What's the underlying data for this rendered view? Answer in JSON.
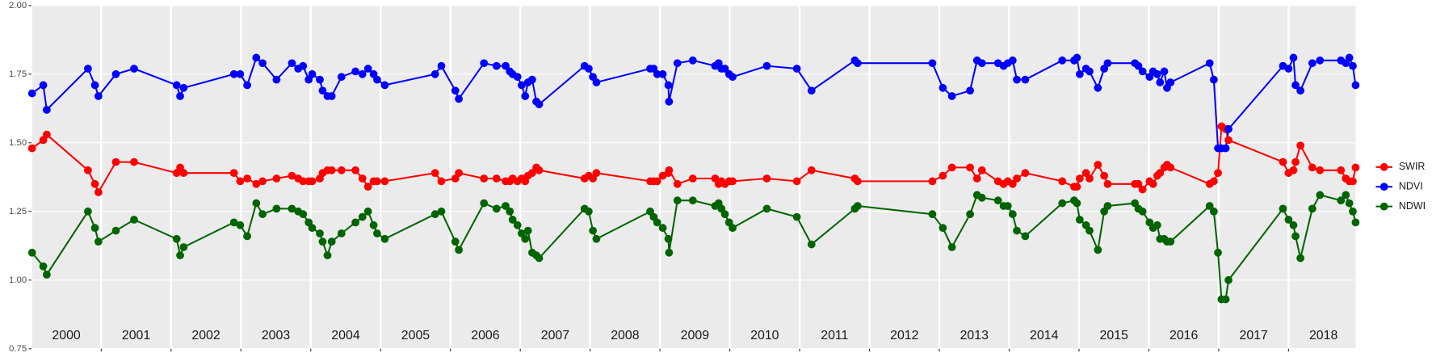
{
  "chart_data": {
    "type": "line",
    "x": [
      2000.01,
      2000.17,
      2000.22,
      2000.81,
      2000.91,
      2000.96,
      2001.21,
      2001.47,
      2002.08,
      2002.13,
      2002.18,
      2002.9,
      2002.99,
      2003.09,
      2003.22,
      2003.31,
      2003.51,
      2003.73,
      2003.82,
      2003.89,
      2003.97,
      2004.02,
      2004.13,
      2004.17,
      2004.24,
      2004.3,
      2004.44,
      2004.64,
      2004.74,
      2004.82,
      2004.9,
      2004.95,
      2005.06,
      2005.78,
      2005.87,
      2006.07,
      2006.12,
      2006.48,
      2006.66,
      2006.79,
      2006.85,
      2006.89,
      2006.96,
      2007.02,
      2007.07,
      2007.11,
      2007.17,
      2007.23,
      2007.27,
      2007.92,
      2007.98,
      2008.04,
      2008.09,
      2008.86,
      2008.91,
      2008.96,
      2009.04,
      2009.12,
      2009.13,
      2009.25,
      2009.47,
      2009.79,
      2009.84,
      2009.88,
      2009.93,
      2009.99,
      2010.04,
      2010.53,
      2010.96,
      2011.17,
      2011.79,
      2011.83,
      2012.9,
      2013.05,
      2013.18,
      2013.44,
      2013.54,
      2013.61,
      2013.84,
      2013.92,
      2013.98,
      2014.05,
      2014.11,
      2014.23,
      2014.76,
      2014.93,
      2014.97,
      2015.01,
      2015.1,
      2015.15,
      2015.27,
      2015.36,
      2015.41,
      2015.8,
      2015.85,
      2015.91,
      2016.01,
      2016.06,
      2016.12,
      2016.16,
      2016.22,
      2016.26,
      2016.31,
      2016.87,
      2016.93,
      2016.99,
      2017.04,
      2017.1,
      2017.14,
      2017.92,
      2018.0,
      2018.07,
      2018.1,
      2018.17,
      2018.34,
      2018.45,
      2018.75,
      2018.82,
      2018.87,
      2018.92,
      2018.96
    ],
    "series": [
      {
        "name": "SWIR",
        "color": "#ff0000",
        "values": [
          1.48,
          1.51,
          1.53,
          1.4,
          1.35,
          1.32,
          1.43,
          1.43,
          1.39,
          1.41,
          1.39,
          1.39,
          1.36,
          1.37,
          1.35,
          1.36,
          1.37,
          1.38,
          1.37,
          1.36,
          1.36,
          1.36,
          1.37,
          1.39,
          1.4,
          1.4,
          1.4,
          1.4,
          1.37,
          1.34,
          1.36,
          1.36,
          1.36,
          1.39,
          1.36,
          1.37,
          1.39,
          1.37,
          1.37,
          1.36,
          1.36,
          1.37,
          1.36,
          1.37,
          1.36,
          1.38,
          1.39,
          1.41,
          1.4,
          1.37,
          1.38,
          1.37,
          1.39,
          1.36,
          1.36,
          1.36,
          1.38,
          1.39,
          1.4,
          1.35,
          1.37,
          1.37,
          1.35,
          1.36,
          1.35,
          1.36,
          1.36,
          1.37,
          1.36,
          1.4,
          1.37,
          1.36,
          1.36,
          1.38,
          1.41,
          1.41,
          1.37,
          1.4,
          1.36,
          1.35,
          1.36,
          1.35,
          1.37,
          1.39,
          1.36,
          1.34,
          1.34,
          1.37,
          1.39,
          1.37,
          1.42,
          1.38,
          1.35,
          1.35,
          1.35,
          1.33,
          1.36,
          1.35,
          1.38,
          1.39,
          1.41,
          1.42,
          1.41,
          1.35,
          1.36,
          1.39,
          1.56,
          1.55,
          1.51,
          1.43,
          1.39,
          1.4,
          1.43,
          1.49,
          1.41,
          1.4,
          1.4,
          1.37,
          1.36,
          1.36,
          1.41
        ]
      },
      {
        "name": "NDVI",
        "color": "#0000ff",
        "values": [
          1.68,
          1.71,
          1.62,
          1.77,
          1.71,
          1.67,
          1.75,
          1.77,
          1.71,
          1.67,
          1.7,
          1.75,
          1.75,
          1.71,
          1.81,
          1.79,
          1.73,
          1.79,
          1.77,
          1.78,
          1.73,
          1.75,
          1.73,
          1.69,
          1.67,
          1.67,
          1.74,
          1.76,
          1.75,
          1.77,
          1.75,
          1.73,
          1.71,
          1.75,
          1.78,
          1.69,
          1.66,
          1.79,
          1.78,
          1.78,
          1.76,
          1.75,
          1.74,
          1.71,
          1.67,
          1.72,
          1.73,
          1.65,
          1.64,
          1.78,
          1.77,
          1.74,
          1.72,
          1.77,
          1.77,
          1.75,
          1.75,
          1.71,
          1.65,
          1.79,
          1.8,
          1.78,
          1.79,
          1.77,
          1.77,
          1.75,
          1.74,
          1.78,
          1.77,
          1.69,
          1.8,
          1.79,
          1.79,
          1.7,
          1.67,
          1.69,
          1.8,
          1.79,
          1.79,
          1.78,
          1.79,
          1.8,
          1.73,
          1.73,
          1.8,
          1.8,
          1.81,
          1.75,
          1.77,
          1.76,
          1.7,
          1.77,
          1.79,
          1.79,
          1.78,
          1.76,
          1.74,
          1.76,
          1.75,
          1.72,
          1.76,
          1.7,
          1.72,
          1.79,
          1.73,
          1.48,
          1.48,
          1.48,
          1.55,
          1.78,
          1.77,
          1.81,
          1.71,
          1.69,
          1.79,
          1.8,
          1.8,
          1.79,
          1.81,
          1.78,
          1.71
        ]
      },
      {
        "name": "NDWI",
        "color": "#006400",
        "values": [
          1.1,
          1.05,
          1.02,
          1.25,
          1.19,
          1.14,
          1.18,
          1.22,
          1.15,
          1.09,
          1.12,
          1.21,
          1.2,
          1.16,
          1.28,
          1.24,
          1.26,
          1.26,
          1.25,
          1.24,
          1.21,
          1.19,
          1.17,
          1.14,
          1.09,
          1.14,
          1.17,
          1.21,
          1.23,
          1.25,
          1.2,
          1.17,
          1.15,
          1.24,
          1.25,
          1.14,
          1.11,
          1.28,
          1.26,
          1.27,
          1.25,
          1.22,
          1.2,
          1.17,
          1.15,
          1.18,
          1.1,
          1.09,
          1.08,
          1.26,
          1.25,
          1.18,
          1.15,
          1.25,
          1.23,
          1.21,
          1.19,
          1.15,
          1.1,
          1.29,
          1.29,
          1.27,
          1.28,
          1.26,
          1.24,
          1.21,
          1.19,
          1.26,
          1.23,
          1.13,
          1.26,
          1.27,
          1.24,
          1.19,
          1.12,
          1.24,
          1.31,
          1.3,
          1.29,
          1.27,
          1.27,
          1.24,
          1.18,
          1.16,
          1.28,
          1.29,
          1.28,
          1.22,
          1.2,
          1.18,
          1.11,
          1.25,
          1.27,
          1.28,
          1.26,
          1.25,
          1.21,
          1.19,
          1.2,
          1.15,
          1.15,
          1.14,
          1.14,
          1.27,
          1.25,
          1.1,
          0.93,
          0.93,
          1.0,
          1.26,
          1.22,
          1.2,
          1.16,
          1.08,
          1.26,
          1.31,
          1.29,
          1.31,
          1.28,
          1.25,
          1.21
        ]
      }
    ],
    "xlim": [
      2000,
      2019
    ],
    "xticks": [
      2001,
      2002,
      2003,
      2004,
      2005,
      2006,
      2007,
      2008,
      2009,
      2010,
      2011,
      2012,
      2013,
      2014,
      2015,
      2016,
      2017,
      2018
    ],
    "year_labels": [
      {
        "value": 2000.5,
        "label": "2000"
      },
      {
        "value": 2001.5,
        "label": "2001"
      },
      {
        "value": 2002.5,
        "label": "2002"
      },
      {
        "value": 2003.5,
        "label": "2003"
      },
      {
        "value": 2004.5,
        "label": "2004"
      },
      {
        "value": 2005.5,
        "label": "2005"
      },
      {
        "value": 2006.5,
        "label": "2006"
      },
      {
        "value": 2007.5,
        "label": "2007"
      },
      {
        "value": 2008.5,
        "label": "2008"
      },
      {
        "value": 2009.5,
        "label": "2009"
      },
      {
        "value": 2010.5,
        "label": "2010"
      },
      {
        "value": 2011.5,
        "label": "2011"
      },
      {
        "value": 2012.5,
        "label": "2012"
      },
      {
        "value": 2013.5,
        "label": "2013"
      },
      {
        "value": 2014.5,
        "label": "2014"
      },
      {
        "value": 2015.5,
        "label": "2015"
      },
      {
        "value": 2016.5,
        "label": "2016"
      },
      {
        "value": 2017.5,
        "label": "2017"
      },
      {
        "value": 2018.5,
        "label": "2018"
      }
    ],
    "ylim": [
      0.75,
      2.0
    ],
    "yticks": [
      0.75,
      {
        "value": 1,
        "label": "1.00"
      },
      1.25,
      {
        "value": 1.5,
        "label": "1.50"
      },
      1.75,
      {
        "value": 2,
        "label": "2.00"
      }
    ],
    "grid": true,
    "legend": "right"
  }
}
